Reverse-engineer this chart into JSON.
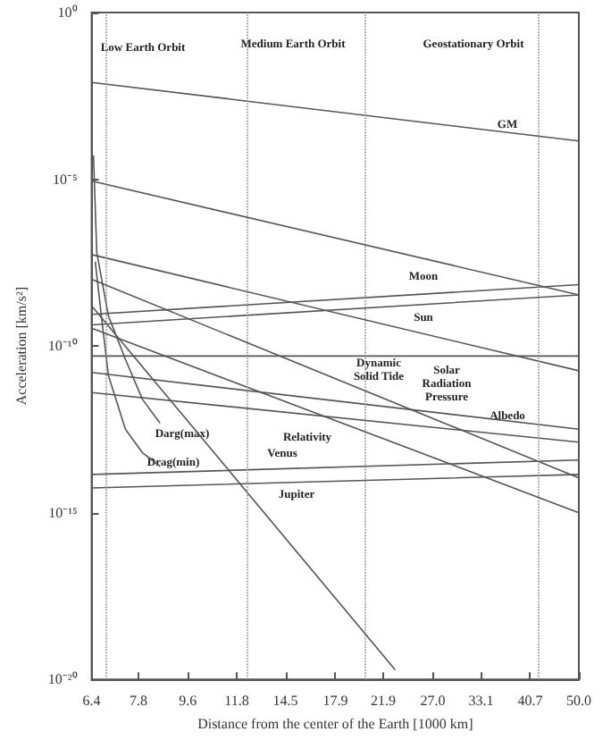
{
  "chart_data": {
    "type": "line",
    "xlabel": "Distance from the center of the Earth [1000 km]",
    "ylabel": "Acceleration [km/s²]",
    "log": "xy",
    "grid": false,
    "marker": "none",
    "line_style": "solid",
    "xlim": [
      6.4,
      50
    ],
    "xticks": [
      6.4,
      7.8,
      9.6,
      11.8,
      14.5,
      17.9,
      21.9,
      {
        "value": 27,
        "label": "27.0"
      },
      33.1,
      40.7,
      {
        "value": 50,
        "label": "50.0"
      }
    ],
    "ylim": [
      1e-20,
      1
    ],
    "yticks": [
      {
        "value": 1e-20,
        "label": "10⁻²⁰"
      },
      {
        "value": 1e-15,
        "label": "10⁻¹⁵"
      },
      {
        "value": 1e-10,
        "label": "10⁻¹⁰"
      },
      {
        "value": 1e-05,
        "label": "10⁻⁵"
      },
      {
        "value": 1,
        "label": "10⁰"
      }
    ],
    "series": [
      {
        "color": "#555555",
        "x": [
          6.4,
          50
        ],
        "values": [
          0.008,
          0.00014
        ]
      },
      {
        "color": "#555555",
        "x": [
          6.4,
          50
        ],
        "values": [
          8.9e-06,
          3.4e-09
        ]
      },
      {
        "color": "#555555",
        "x": [
          6.4,
          50
        ],
        "values": [
          5.5e-08,
          1.8e-11
        ]
      },
      {
        "color": "#555555",
        "x": [
          6.4,
          50
        ],
        "values": [
          1e-08,
          1.1e-14
        ]
      },
      {
        "color": "#555555",
        "x": [
          6.4,
          23
        ],
        "values": [
          1.6e-09,
          2e-20
        ]
      },
      {
        "color": "#555555",
        "x": [
          6.4,
          50
        ],
        "values": [
          3.4e-10,
          1e-15
        ]
      },
      {
        "color": "#555555",
        "x": [
          6.4,
          50
        ],
        "values": [
          8.9e-10,
          6.9e-09
        ]
      },
      {
        "color": "#555555",
        "x": [
          6.4,
          50
        ],
        "values": [
          4.3e-10,
          3.4e-09
        ]
      },
      {
        "color": "#555555",
        "x": [
          6.4,
          50
        ],
        "values": [
          5e-11,
          5e-11
        ]
      },
      {
        "color": "#555555",
        "x": [
          6.4,
          50
        ],
        "values": [
          1.6e-11,
          3.2e-13
        ]
      },
      {
        "color": "#555555",
        "x": [
          6.4,
          50
        ],
        "values": [
          4e-12,
          1.3e-13
        ]
      },
      {
        "color": "#555555",
        "x": [
          6.4,
          50
        ],
        "values": [
          1.4e-14,
          3.8e-14
        ]
      },
      {
        "color": "#555555",
        "x": [
          6.4,
          50
        ],
        "values": [
          5.5e-15,
          1.4e-14
        ]
      },
      {
        "color": "#555555",
        "x": [
          6.45,
          6.54,
          6.87,
          7.38,
          7.93,
          8.53
        ],
        "values": [
          5e-05,
          6.3e-08,
          7.9e-10,
          4e-11,
          2.5e-12,
          5e-13
        ]
      },
      {
        "color": "#555555",
        "x": [
          6.5,
          6.7,
          6.87,
          7.38,
          7.93,
          8.53
        ],
        "values": [
          3.2e-08,
          4e-10,
          1.3e-11,
          3.2e-13,
          6.3e-14,
          2.5e-14
        ]
      }
    ],
    "ref_lines": [
      {
        "axis": "x",
        "value": 6.8,
        "color": "#888888",
        "line_style": "dotted"
      },
      {
        "axis": "x",
        "value": 12.3,
        "color": "#888888",
        "line_style": "dotted"
      },
      {
        "axis": "x",
        "value": 20.2,
        "color": "#888888",
        "line_style": "dotted"
      },
      {
        "axis": "x",
        "value": 42.2,
        "color": "#888888",
        "line_style": "dotted"
      }
    ],
    "annotations": [
      "Low Earth Orbit",
      "Medium Earth Orbit",
      "Geostationary Orbit",
      "GM",
      "Moon",
      "Sun",
      "Dynamic Solid Tide",
      "Solar Radiation Pressure",
      "Albedo",
      "Relativity",
      "Darg(max)",
      "Drag(min)",
      "Venus",
      "Jupiter"
    ]
  }
}
